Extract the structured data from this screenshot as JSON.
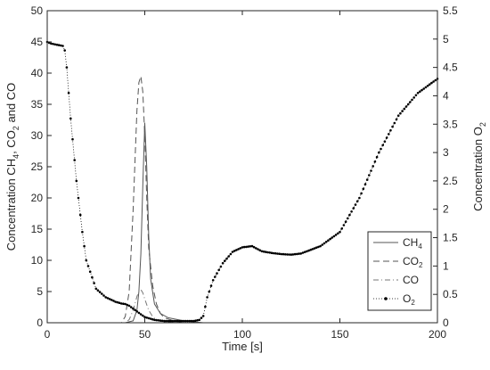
{
  "chart_data": {
    "type": "line",
    "xlabel": "Time [s]",
    "ylabel_left": "Concentration CH4, CO2 and CO",
    "ylabel_right": "Concentration O2",
    "xlim": [
      0,
      200
    ],
    "ylim_left": [
      0,
      50
    ],
    "ylim_right": [
      0,
      5.5
    ],
    "x_ticks": [
      "0",
      "50",
      "100",
      "150",
      "200"
    ],
    "y_left_ticks": [
      "0",
      "5",
      "10",
      "15",
      "20",
      "25",
      "30",
      "35",
      "40",
      "45",
      "50"
    ],
    "y_right_ticks": [
      "0",
      "0.5",
      "1",
      "1.5",
      "2",
      "2.5",
      "3",
      "3.5",
      "4",
      "4.5",
      "5",
      "5.5"
    ],
    "grid": false,
    "legend_position": "bottom-right",
    "colors": {
      "ch4": "#555555",
      "co2": "#555555",
      "co": "#777777",
      "o2": "#000000",
      "axis": "#262626"
    },
    "series": [
      {
        "name": "CH4",
        "axis": "left",
        "style": "solid",
        "x": [
          0,
          40,
          44,
          46,
          47,
          48,
          49,
          50,
          51,
          52,
          53,
          55,
          58,
          62,
          70,
          80,
          200
        ],
        "y": [
          0,
          0,
          0.3,
          2,
          5,
          11,
          22,
          32,
          25,
          14,
          7,
          3,
          1.5,
          0.8,
          0.3,
          0,
          0
        ]
      },
      {
        "name": "CO2",
        "axis": "left",
        "style": "dashed",
        "x": [
          0,
          38,
          40,
          42,
          44,
          46,
          47,
          48,
          49,
          50,
          51,
          52,
          54,
          56,
          58,
          60,
          65,
          70,
          80,
          200
        ],
        "y": [
          0,
          0,
          1,
          5,
          18,
          34,
          38.5,
          39.5,
          37,
          30,
          20,
          12,
          6,
          3,
          1.5,
          0.8,
          0.3,
          0,
          0,
          0
        ]
      },
      {
        "name": "CO",
        "axis": "left",
        "style": "dashdot",
        "x": [
          0,
          40,
          42,
          44,
          46,
          47,
          48,
          49,
          50,
          52,
          54,
          56,
          60,
          70,
          200
        ],
        "y": [
          0,
          0,
          0.5,
          2,
          4.2,
          5,
          5.3,
          4.8,
          3.8,
          2,
          1,
          0.4,
          0.1,
          0,
          0
        ]
      },
      {
        "name": "O2",
        "axis": "right",
        "style": "dotted-markers",
        "x": [
          0,
          2,
          5,
          8,
          9,
          10,
          12,
          15,
          18,
          20,
          25,
          30,
          35,
          38,
          40,
          42,
          44,
          46,
          48,
          50,
          55,
          60,
          65,
          70,
          75,
          78,
          80,
          82,
          85,
          90,
          95,
          100,
          105,
          110,
          115,
          120,
          125,
          130,
          140,
          150,
          160,
          170,
          180,
          190,
          200
        ],
        "y": [
          4.95,
          4.92,
          4.9,
          4.88,
          4.8,
          4.5,
          3.6,
          2.5,
          1.6,
          1.1,
          0.6,
          0.45,
          0.37,
          0.34,
          0.33,
          0.3,
          0.25,
          0.2,
          0.15,
          0.1,
          0.05,
          0.03,
          0.03,
          0.03,
          0.03,
          0.05,
          0.12,
          0.45,
          0.75,
          1.05,
          1.25,
          1.33,
          1.35,
          1.26,
          1.23,
          1.21,
          1.2,
          1.22,
          1.35,
          1.6,
          2.2,
          3.0,
          3.65,
          4.05,
          4.3
        ]
      }
    ],
    "legend": [
      {
        "key": "ch4",
        "label": "CH",
        "sub": "4"
      },
      {
        "key": "co2",
        "label": "CO",
        "sub": "2"
      },
      {
        "key": "co",
        "label": "CO",
        "sub": ""
      },
      {
        "key": "o2",
        "label": "O",
        "sub": "2"
      }
    ]
  }
}
